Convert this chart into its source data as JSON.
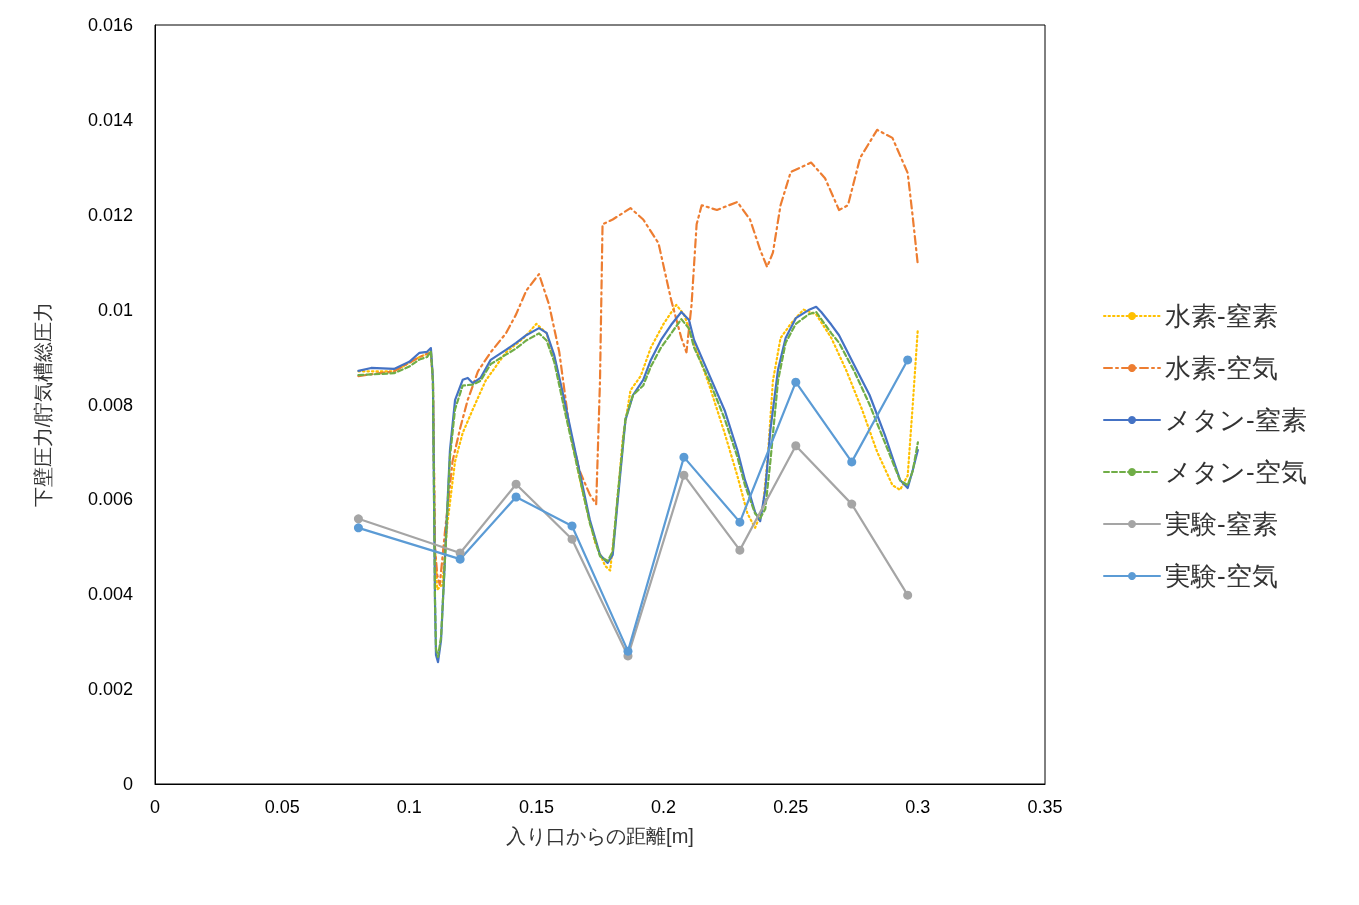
{
  "chart_data": {
    "type": "line",
    "xlabel": "入り口からの距離[m]",
    "ylabel": "下壁圧力/貯気槽総圧力",
    "xlim": [
      0,
      0.35
    ],
    "xticks": [
      0,
      0.05,
      0.1,
      0.15,
      0.2,
      0.25,
      0.3,
      0.35
    ],
    "ylim": [
      0,
      0.016
    ],
    "yticks": [
      0,
      0.002,
      0.004,
      0.006,
      0.008,
      0.01,
      0.012,
      0.014,
      0.016
    ],
    "grid": false,
    "legend": "right",
    "marker": "none",
    "series": [
      {
        "name": "水素-窒素",
        "color": "#ffc000",
        "line_style": "dotted",
        "x": [
          0.08,
          0.094,
          0.104,
          0.1085,
          0.1093,
          0.1101,
          0.111,
          0.113,
          0.115,
          0.118,
          0.121,
          0.125,
          0.13,
          0.138,
          0.145,
          0.15,
          0.154,
          0.158,
          0.163,
          0.168,
          0.173,
          0.177,
          0.179,
          0.181,
          0.184,
          0.187,
          0.191,
          0.195,
          0.2,
          0.205,
          0.208,
          0.212,
          0.218,
          0.224,
          0.229,
          0.233,
          0.236,
          0.239,
          0.241,
          0.243,
          0.246,
          0.25,
          0.255,
          0.26,
          0.266,
          0.272,
          0.278,
          0.284,
          0.29,
          0.293,
          0.296,
          0.298,
          0.3
        ],
        "values": [
          0.0087,
          0.0087,
          0.009,
          0.0091,
          0.0085,
          0.005,
          0.0041,
          0.0042,
          0.0055,
          0.0068,
          0.0074,
          0.0079,
          0.0085,
          0.0091,
          0.0094,
          0.0097,
          0.0095,
          0.0088,
          0.0075,
          0.0062,
          0.0051,
          0.0046,
          0.0045,
          0.0055,
          0.0073,
          0.0083,
          0.0086,
          0.0092,
          0.0097,
          0.0101,
          0.0099,
          0.0093,
          0.0084,
          0.0074,
          0.0065,
          0.0057,
          0.0054,
          0.0058,
          0.0069,
          0.0085,
          0.0094,
          0.0097,
          0.01,
          0.0099,
          0.0094,
          0.0087,
          0.0079,
          0.007,
          0.0063,
          0.0062,
          0.0065,
          0.008,
          0.0096
        ]
      },
      {
        "name": "水素-空気",
        "color": "#ed7d31",
        "line_style": "dashdot",
        "x": [
          0.08,
          0.094,
          0.104,
          0.1085,
          0.1093,
          0.1101,
          0.111,
          0.112,
          0.114,
          0.117,
          0.12,
          0.123,
          0.127,
          0.132,
          0.138,
          0.142,
          0.146,
          0.151,
          0.155,
          0.159,
          0.163,
          0.167,
          0.171,
          0.1735,
          0.175,
          0.176,
          0.18,
          0.187,
          0.192,
          0.198,
          0.203,
          0.207,
          0.209,
          0.211,
          0.213,
          0.215,
          0.221,
          0.229,
          0.234,
          0.238,
          0.2407,
          0.243,
          0.246,
          0.25,
          0.258,
          0.2635,
          0.269,
          0.2725,
          0.2773,
          0.284,
          0.29,
          0.296,
          0.298,
          0.3
        ],
        "values": [
          0.0086,
          0.0087,
          0.009,
          0.0091,
          0.0085,
          0.005,
          0.0044,
          0.0042,
          0.0053,
          0.0068,
          0.0075,
          0.0081,
          0.0087,
          0.0091,
          0.0095,
          0.0099,
          0.0104,
          0.01075,
          0.0101,
          0.0091,
          0.0075,
          0.0066,
          0.0061,
          0.0059,
          0.0085,
          0.0118,
          0.0119,
          0.01214,
          0.0119,
          0.0114,
          0.0102,
          0.0094,
          0.0091,
          0.0101,
          0.0118,
          0.0122,
          0.0121,
          0.01227,
          0.0119,
          0.01126,
          0.0109,
          0.0112,
          0.0122,
          0.0129,
          0.0131,
          0.01277,
          0.0121,
          0.0122,
          0.0132,
          0.01379,
          0.01362,
          0.01288,
          0.01195,
          0.01094
        ]
      },
      {
        "name": "メタン-窒素",
        "color": "#4472c4",
        "line_style": "solid",
        "x": [
          0.08,
          0.085,
          0.094,
          0.1,
          0.104,
          0.107,
          0.1085,
          0.1093,
          0.1101,
          0.1105,
          0.1113,
          0.1125,
          0.114,
          0.116,
          0.118,
          0.121,
          0.123,
          0.125,
          0.128,
          0.132,
          0.138,
          0.142,
          0.146,
          0.151,
          0.154,
          0.157,
          0.161,
          0.166,
          0.171,
          0.175,
          0.178,
          0.18,
          0.182,
          0.185,
          0.188,
          0.192,
          0.195,
          0.199,
          0.203,
          0.207,
          0.21,
          0.212,
          0.218,
          0.224,
          0.229,
          0.232,
          0.234,
          0.236,
          0.238,
          0.24,
          0.242,
          0.245,
          0.248,
          0.252,
          0.257,
          0.26,
          0.262,
          0.266,
          0.269,
          0.275,
          0.281,
          0.287,
          0.293,
          0.296,
          0.298,
          0.3
        ],
        "values": [
          0.00871,
          0.00877,
          0.00875,
          0.0089,
          0.00909,
          0.00911,
          0.00919,
          0.00852,
          0.00388,
          0.00272,
          0.00257,
          0.00304,
          0.00472,
          0.00704,
          0.00809,
          0.00852,
          0.00856,
          0.00845,
          0.00856,
          0.00894,
          0.00915,
          0.0093,
          0.00946,
          0.00961,
          0.00951,
          0.00904,
          0.00809,
          0.00683,
          0.00557,
          0.00483,
          0.00466,
          0.00483,
          0.00599,
          0.00767,
          0.0082,
          0.00852,
          0.00894,
          0.00936,
          0.00968,
          0.00995,
          0.00978,
          0.00936,
          0.00862,
          0.00788,
          0.00704,
          0.00641,
          0.00609,
          0.00573,
          0.00554,
          0.0062,
          0.00746,
          0.00873,
          0.0094,
          0.00982,
          0.00999,
          0.01006,
          0.00995,
          0.00968,
          0.00946,
          0.00883,
          0.0082,
          0.00736,
          0.00641,
          0.00624,
          0.00662,
          0.00704
        ]
      },
      {
        "name": "メタン-空気",
        "color": "#70ad47",
        "line_style": "dashed",
        "x": [
          0.08,
          0.094,
          0.1,
          0.104,
          0.107,
          0.1085,
          0.1093,
          0.1101,
          0.1105,
          0.1113,
          0.1125,
          0.114,
          0.116,
          0.118,
          0.121,
          0.125,
          0.128,
          0.132,
          0.138,
          0.142,
          0.146,
          0.151,
          0.154,
          0.157,
          0.161,
          0.166,
          0.171,
          0.175,
          0.178,
          0.18,
          0.182,
          0.185,
          0.188,
          0.192,
          0.195,
          0.199,
          0.203,
          0.207,
          0.21,
          0.212,
          0.218,
          0.224,
          0.229,
          0.232,
          0.234,
          0.236,
          0.238,
          0.24,
          0.242,
          0.245,
          0.248,
          0.252,
          0.257,
          0.26,
          0.262,
          0.266,
          0.269,
          0.275,
          0.281,
          0.287,
          0.293,
          0.296,
          0.298,
          0.3
        ],
        "values": [
          0.00862,
          0.00866,
          0.0088,
          0.00895,
          0.009,
          0.00912,
          0.0085,
          0.0039,
          0.00285,
          0.00268,
          0.0031,
          0.0047,
          0.0069,
          0.0079,
          0.0084,
          0.00842,
          0.0085,
          0.00885,
          0.00905,
          0.00918,
          0.00935,
          0.0095,
          0.00935,
          0.0089,
          0.0079,
          0.0067,
          0.0055,
          0.0048,
          0.0047,
          0.0049,
          0.0061,
          0.0077,
          0.0082,
          0.0084,
          0.0088,
          0.0092,
          0.0095,
          0.0098,
          0.0096,
          0.0092,
          0.0085,
          0.0077,
          0.0069,
          0.0063,
          0.006,
          0.0057,
          0.0056,
          0.0058,
          0.0068,
          0.0085,
          0.0093,
          0.0097,
          0.0099,
          0.00995,
          0.0098,
          0.0095,
          0.0093,
          0.0087,
          0.008,
          0.0072,
          0.0064,
          0.0063,
          0.0066,
          0.0072
        ]
      },
      {
        "name": "実験-窒素",
        "color": "#a5a5a5",
        "line_style": "solid",
        "marker": "circle",
        "x": [
          0.08,
          0.12,
          0.142,
          0.164,
          0.186,
          0.208,
          0.23,
          0.252,
          0.274,
          0.296
        ],
        "values": [
          0.00559,
          0.00487,
          0.00632,
          0.00516,
          0.0027,
          0.00651,
          0.00493,
          0.00713,
          0.0059,
          0.00398
        ]
      },
      {
        "name": "実験-空気",
        "color": "#5b9bd5",
        "line_style": "solid",
        "marker": "circle",
        "x": [
          0.08,
          0.12,
          0.142,
          0.164,
          0.186,
          0.208,
          0.23,
          0.252,
          0.274,
          0.296
        ],
        "values": [
          0.0054,
          0.00474,
          0.00605,
          0.00544,
          0.0028,
          0.00689,
          0.00552,
          0.00847,
          0.00679,
          0.00894
        ]
      }
    ]
  }
}
